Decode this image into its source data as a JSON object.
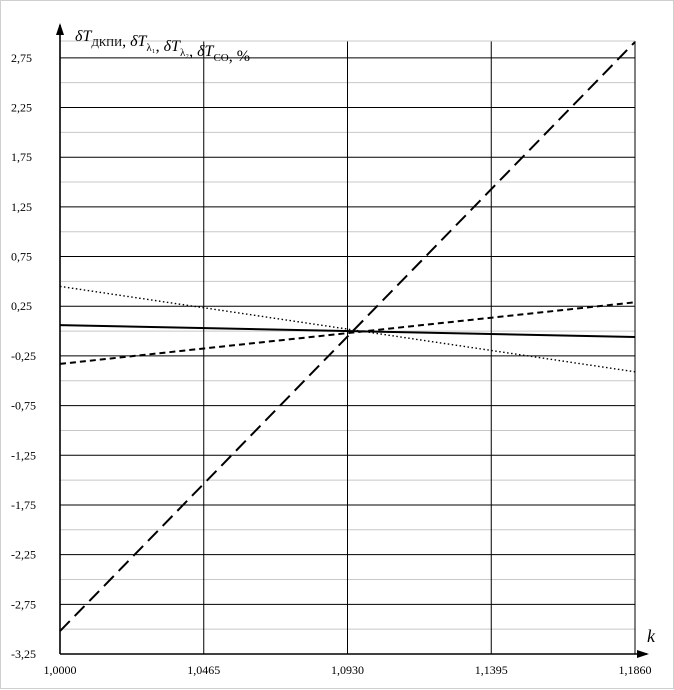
{
  "chart_data": {
    "type": "line",
    "xlabel": "k",
    "ylabel_parts": [
      {
        "sym": "δT",
        "sub": "ДКПИ"
      },
      {
        "sep": ", "
      },
      {
        "sym": "δT",
        "sub": "λ₁"
      },
      {
        "sep": ", "
      },
      {
        "sym": "δT",
        "sub": "λ₂"
      },
      {
        "sep": ", "
      },
      {
        "sym": "δT",
        "sub": "СО"
      },
      {
        "sep": ", %"
      }
    ],
    "xlim": [
      1.0,
      1.186
    ],
    "ylim": [
      -3.25,
      3.0
    ],
    "x_ticks": [
      1.0,
      1.0465,
      1.093,
      1.1395,
      1.186
    ],
    "x_tick_labels": [
      "1,0000",
      "1,0465",
      "1,0930",
      "1,1395",
      "1,1860"
    ],
    "y_ticks": [
      2.75,
      2.25,
      1.75,
      1.25,
      0.75,
      0.25,
      -0.25,
      -0.75,
      -1.25,
      -1.75,
      -2.25,
      -2.75,
      -3.25
    ],
    "y_tick_labels": [
      "2,75",
      "2,25",
      "1,75",
      "1,25",
      "0,75",
      "0,25",
      "-0,25",
      "-0,75",
      "-1,25",
      "-1,75",
      "-2,25",
      "-2,75",
      "-3,25"
    ],
    "minor_y_step": 0.25,
    "grid": true,
    "series": [
      {
        "style": "long-dash",
        "color": "#000000",
        "x": [
          1.0,
          1.186
        ],
        "y": [
          -3.02,
          2.91
        ]
      },
      {
        "style": "short-dash",
        "color": "#000000",
        "x": [
          1.0,
          1.186
        ],
        "y": [
          -0.33,
          0.29
        ]
      },
      {
        "style": "dotted",
        "color": "#000000",
        "x": [
          1.0,
          1.186
        ],
        "y": [
          0.45,
          -0.41
        ]
      },
      {
        "style": "solid",
        "color": "#000000",
        "x": [
          1.0,
          1.186
        ],
        "y": [
          0.06,
          -0.06
        ]
      }
    ]
  }
}
